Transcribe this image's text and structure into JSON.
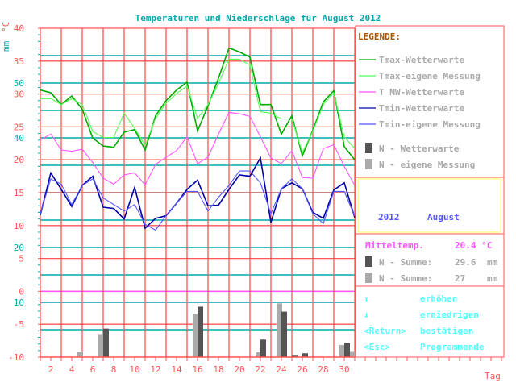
{
  "title": "Temperaturen und Niederschläge für August 2012",
  "colors": {
    "grid_red": "#ff5555",
    "grid_teal": "#00aaaa",
    "tmax_ww": "#00aa00",
    "tmax_own": "#55ff55",
    "tmw_ww": "#ff55ff",
    "tmin_ww": "#0000aa",
    "tmin_own": "#5555ff",
    "rain_ww": "#555555",
    "rain_own": "#aaaaaa",
    "legend_text": "#aaaaaa",
    "legend_title": "#aa5500",
    "keys": "#55ffff",
    "year_box": "#ffff55"
  },
  "chart_data": {
    "type": "line",
    "title": "Temperaturen und Niederschläge für August 2012",
    "xlabel": "Tag",
    "ylabel_temp": "°C",
    "ylabel_rain": "mm",
    "xlim": [
      1,
      31
    ],
    "ylim_temp": [
      -10,
      40
    ],
    "x_ticks": [
      "2",
      "4",
      "6",
      "8",
      "10",
      "12",
      "14",
      "16",
      "18",
      "20",
      "22",
      "24",
      "26",
      "28",
      "30"
    ],
    "temp_ticks": [
      "40",
      "35",
      "30",
      "25",
      "20",
      "15",
      "10",
      "5",
      "0",
      "-5",
      "-10"
    ],
    "rain_ticks": [
      "50",
      "40",
      "20",
      "10"
    ],
    "x": [
      1,
      2,
      3,
      4,
      5,
      6,
      7,
      8,
      9,
      10,
      11,
      12,
      13,
      14,
      15,
      16,
      17,
      18,
      19,
      20,
      21,
      22,
      23,
      24,
      25,
      26,
      27,
      28,
      29,
      30,
      31
    ],
    "series": [
      {
        "name": "Tmax-Wetterwarte",
        "key": "tmax_ww",
        "values": [
          30.6,
          30.2,
          28.4,
          29.7,
          27.7,
          23.3,
          22.1,
          21.9,
          24.2,
          24.6,
          21.5,
          26.7,
          29.0,
          30.6,
          31.8,
          24.4,
          28.2,
          32.4,
          37.0,
          36.4,
          35.6,
          28.4,
          28.4,
          23.9,
          26.7,
          20.6,
          24.5,
          28.8,
          30.5,
          22.0,
          20.0
        ]
      },
      {
        "name": "Tmax-eigene Messung",
        "key": "tmax_own",
        "values": [
          29.3,
          29.3,
          28.4,
          29.3,
          28.4,
          24.3,
          23.4,
          23.4,
          27.1,
          24.8,
          22.2,
          26.3,
          28.6,
          30.1,
          31.2,
          26.3,
          28.4,
          31.6,
          35.3,
          35.3,
          34.4,
          27.3,
          27.1,
          26.2,
          26.2,
          21.1,
          24.3,
          28.4,
          30.2,
          23.5,
          21.7
        ]
      },
      {
        "name": "T MW-Wetterwarte",
        "key": "tmw_ww",
        "values": [
          23.0,
          23.9,
          21.5,
          21.3,
          21.6,
          19.6,
          17.2,
          16.3,
          17.7,
          18.0,
          16.2,
          19.3,
          20.4,
          21.4,
          23.5,
          19.4,
          20.4,
          23.9,
          27.2,
          27.0,
          26.6,
          23.5,
          20.3,
          19.4,
          21.4,
          17.3,
          17.2,
          21.7,
          22.3,
          19.0,
          16.1
        ]
      },
      {
        "name": "Tmin-Wetterwarte",
        "key": "tmin_ww",
        "values": [
          11.6,
          18.0,
          15.5,
          12.9,
          16.1,
          17.5,
          12.8,
          12.6,
          11.0,
          15.8,
          9.6,
          11.1,
          11.5,
          13.4,
          15.5,
          16.9,
          13.0,
          13.1,
          15.5,
          17.7,
          17.5,
          20.3,
          10.5,
          15.6,
          16.5,
          15.6,
          12.0,
          11.1,
          15.4,
          16.5,
          11.2
        ]
      },
      {
        "name": "Tmin-eigene Messung",
        "key": "tmin_own",
        "values": [
          11.8,
          17.1,
          16.3,
          13.2,
          16.1,
          17.1,
          14.2,
          13.2,
          12.2,
          13.2,
          10.2,
          9.3,
          11.5,
          13.4,
          15.2,
          15.2,
          12.2,
          14.3,
          16.1,
          18.3,
          18.3,
          16.5,
          11.8,
          15.6,
          17.1,
          15.6,
          11.8,
          10.3,
          15.2,
          15.2,
          11.4
        ]
      }
    ],
    "bars": [
      {
        "name": "N - Wetterwarte",
        "key": "rain_ww",
        "days": [
          7,
          16,
          22,
          24,
          25,
          26,
          30
        ],
        "values": [
          5.2,
          9.2,
          3.2,
          8.3,
          0.4,
          0.7,
          2.6
        ]
      },
      {
        "name": "N - eigene Messung",
        "key": "rain_own",
        "days": [
          5,
          7,
          16,
          22,
          24,
          30,
          31
        ],
        "values": [
          1.0,
          4.2,
          7.8,
          0.9,
          9.8,
          2.2,
          1.1
        ]
      }
    ]
  },
  "legend": {
    "title": "LEGENDE:",
    "items": [
      "Tmax-Wetterwarte",
      "Tmax-eigene Messung",
      "T MW-Wetterwarte",
      "Tmin-Wetterwarte",
      "Tmin-eigene Messung",
      "N - Wetterwarte",
      "N - eigene Messung"
    ]
  },
  "selection": {
    "year": "2012",
    "month": "August"
  },
  "stats": {
    "mean_label": "Mitteltemp.",
    "mean_value": "20.4 °C",
    "sum_label": "N - Summe:",
    "sum_ww": "29.6",
    "sum_own": "27",
    "unit": "mm"
  },
  "keys": [
    {
      "key": "↑",
      "action": "erhöhen"
    },
    {
      "key": "↓",
      "action": "erniedrigen"
    },
    {
      "key": "<Return>",
      "action": "bestätigen"
    },
    {
      "key": "<Esc>",
      "action": "Programmende"
    }
  ]
}
